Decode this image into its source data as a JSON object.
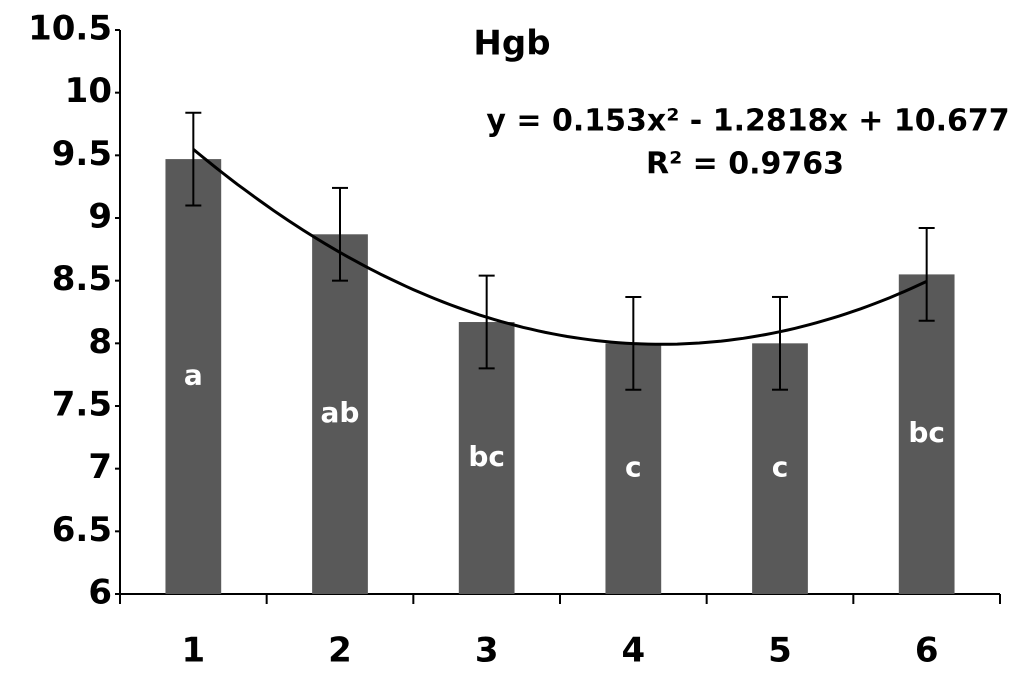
{
  "chart_data": {
    "type": "bar",
    "title": "Hgb",
    "categories": [
      "1",
      "2",
      "3",
      "4",
      "5",
      "6"
    ],
    "values": [
      9.47,
      8.87,
      8.17,
      8.0,
      8.0,
      8.55
    ],
    "errors": [
      0.37,
      0.37,
      0.37,
      0.37,
      0.37,
      0.37
    ],
    "letters": [
      "a",
      "ab",
      "bc",
      "c",
      "c",
      "bc"
    ],
    "color": "#595959",
    "ylim": [
      6,
      10.5
    ],
    "yticks": [
      6,
      6.5,
      7,
      7.5,
      8,
      8.5,
      9,
      9.5,
      10,
      10.5
    ],
    "grid": false,
    "trendline": {
      "coefficients": [
        0.153,
        -1.2818,
        10.677
      ],
      "equation": "y = 0.153x² - 1.2818x + 10.677",
      "r_squared": "R² = 0.9763"
    }
  }
}
